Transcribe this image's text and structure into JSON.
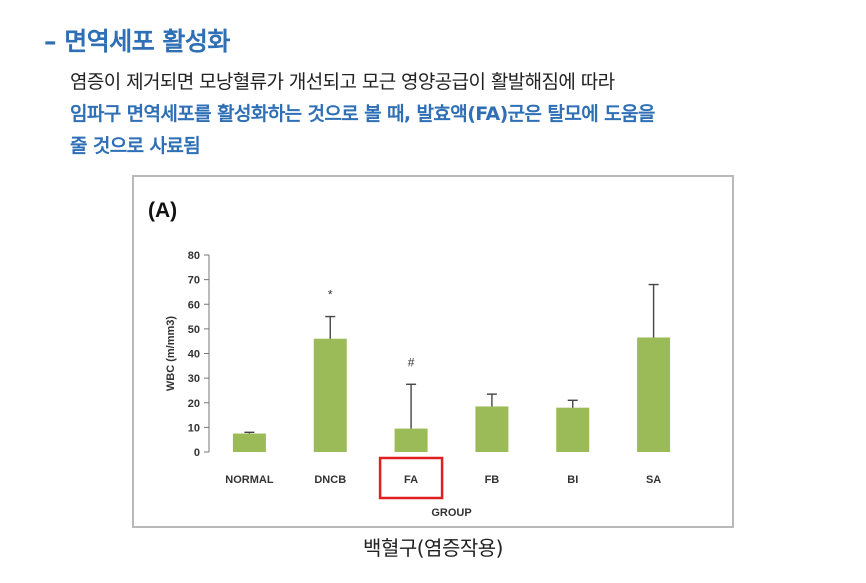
{
  "heading": "– 면역세포 활성화",
  "paragraph": {
    "line1": "염증이 제거되면 모낭혈류가 개선되고 모근 영양공급이 활발해짐에 따라",
    "line2": "임파구 면역세포를 활성화하는 것으로 볼 때, 발효액(FA)군은 탈모에 도움을",
    "line3": "줄 것으로 사료됨"
  },
  "caption": "백혈구(염증작용)",
  "colors": {
    "bar": "#9bbb59",
    "highlight_box": "#e02020",
    "text_blue": "#2f6fb5"
  },
  "chart_data": {
    "type": "bar",
    "panel_label": "(A)",
    "categories": [
      "NORMAL",
      "DNCB",
      "FA",
      "FB",
      "BI",
      "SA"
    ],
    "values": [
      7.5,
      46,
      9.5,
      18.5,
      18,
      46.5
    ],
    "error_upper": [
      8,
      55,
      27.5,
      23.5,
      21,
      68
    ],
    "annotations": [
      "",
      "*",
      "#",
      "",
      "",
      ""
    ],
    "highlighted_category": "FA",
    "xlabel": "GROUP",
    "ylabel": "WBC (m/mm3)",
    "ylim": [
      0,
      80
    ],
    "yticks": [
      0,
      10,
      20,
      30,
      40,
      50,
      60,
      70,
      80
    ],
    "grid": false
  }
}
